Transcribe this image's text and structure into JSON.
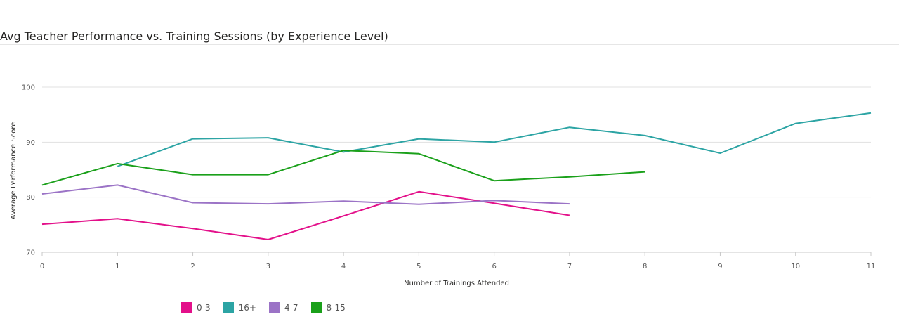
{
  "chart_data": {
    "type": "line",
    "title": "Avg Teacher Performance vs. Training Sessions (by Experience Level)",
    "xlabel": "Number of Trainings Attended",
    "ylabel": "Average Performance Score",
    "xlim": [
      0,
      11
    ],
    "ylim": [
      70,
      100
    ],
    "x_ticks": [
      0,
      1,
      2,
      3,
      4,
      5,
      6,
      7,
      8,
      9,
      10,
      11
    ],
    "y_ticks": [
      70,
      80,
      90,
      100
    ],
    "grid": true,
    "legend_position": "bottom-left",
    "series": [
      {
        "name": "0-3",
        "color": "#E3108A",
        "points": [
          [
            0,
            75.1
          ],
          [
            1,
            76.1
          ],
          [
            2,
            74.3
          ],
          [
            3,
            72.3
          ],
          [
            4,
            76.6
          ],
          [
            5,
            81.0
          ],
          [
            6,
            78.9
          ],
          [
            7,
            76.7
          ]
        ]
      },
      {
        "name": "16+",
        "color": "#2CA4A4",
        "points": [
          [
            1,
            85.6
          ],
          [
            2,
            90.6
          ],
          [
            3,
            90.8
          ],
          [
            4,
            88.2
          ],
          [
            5,
            90.6
          ],
          [
            6,
            90.0
          ],
          [
            7,
            92.7
          ],
          [
            8,
            91.2
          ],
          [
            9,
            88.0
          ],
          [
            10,
            93.4
          ],
          [
            11,
            95.3
          ]
        ]
      },
      {
        "name": "4-7",
        "color": "#9B73C6",
        "points": [
          [
            0,
            80.6
          ],
          [
            1,
            82.2
          ],
          [
            2,
            79.0
          ],
          [
            3,
            78.8
          ],
          [
            4,
            79.3
          ],
          [
            5,
            78.7
          ],
          [
            6,
            79.4
          ],
          [
            7,
            78.8
          ]
        ]
      },
      {
        "name": "8-15",
        "color": "#1AA01A",
        "points": [
          [
            0,
            82.2
          ],
          [
            1,
            86.1
          ],
          [
            2,
            84.1
          ],
          [
            3,
            84.1
          ],
          [
            4,
            88.5
          ],
          [
            5,
            87.9
          ],
          [
            6,
            83.0
          ],
          [
            7,
            83.7
          ],
          [
            8,
            84.6
          ]
        ]
      }
    ]
  }
}
